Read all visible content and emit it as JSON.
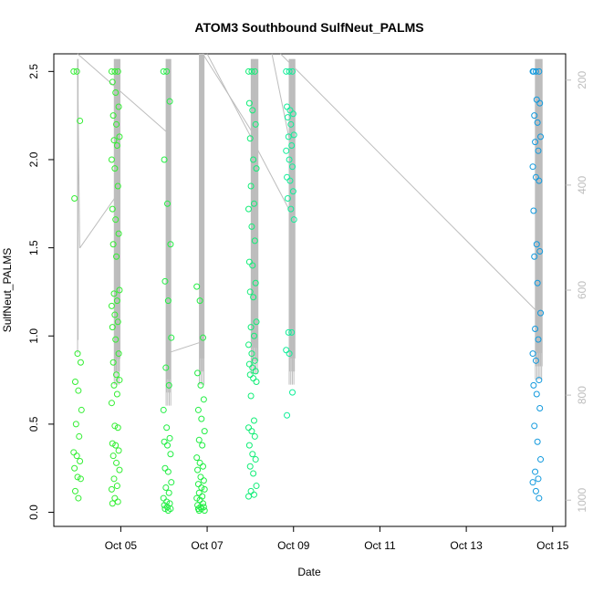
{
  "chart_data": {
    "type": "scatter",
    "title": "ATOM3 Southbound SulfNeut_PALMS",
    "xlabel": "Date",
    "ylabel": "SulfNeut_PALMS",
    "x_ticks": [
      "Oct 05",
      "Oct 07",
      "Oct 09",
      "Oct 11",
      "Oct 13",
      "Oct 15"
    ],
    "x_tick_days": [
      5,
      7,
      9,
      11,
      13,
      15
    ],
    "xlim_days": [
      3.45,
      15.3
    ],
    "y_ticks": [
      0.0,
      0.5,
      1.0,
      1.5,
      2.0,
      2.5
    ],
    "y_ticks_labels": [
      "0.0",
      "0.5",
      "1.0",
      "1.5",
      "2.0",
      "2.5"
    ],
    "ylim": [
      -0.08,
      2.6
    ],
    "y2_ticks": [
      200,
      400,
      600,
      800,
      1000
    ],
    "y2_ticks_labels": [
      "200",
      "400",
      "600",
      "800",
      "1000"
    ],
    "y2lim_top_to_bottom": [
      150,
      1050
    ],
    "secondary_axis_reversed": true,
    "marker": "open-circle",
    "color_by_time": {
      "start": "#22ff22",
      "mid": "#00ee99",
      "end": "#1199dd"
    },
    "pressure_trace_color": "#bdbdbd",
    "flights": [
      {
        "day": 4.0,
        "color": "#33ee33",
        "y": [
          2.5,
          2.5,
          2.22,
          1.78,
          0.9,
          0.85,
          0.74,
          0.69,
          0.58,
          0.5,
          0.43,
          0.34,
          0.32,
          0.29,
          0.25,
          0.2,
          0.19,
          0.12,
          0.08
        ]
      },
      {
        "day": 4.88,
        "color": "#33ee33",
        "y": [
          2.5,
          2.5,
          2.5,
          2.44,
          2.38,
          2.3,
          2.25,
          2.2,
          2.13,
          2.11,
          2.08,
          2.0,
          1.95,
          1.85,
          1.72,
          1.66,
          1.58,
          1.52,
          1.45,
          1.26,
          1.24,
          1.2,
          1.17,
          1.12,
          1.08,
          1.05,
          0.98,
          0.9,
          0.85,
          0.78,
          0.75,
          0.72,
          0.67,
          0.62,
          0.49,
          0.48,
          0.39,
          0.38,
          0.35,
          0.32,
          0.28,
          0.24,
          0.19,
          0.15,
          0.13,
          0.08,
          0.06,
          0.05
        ]
      },
      {
        "day": 6.08,
        "color": "#22ee44",
        "y": [
          2.5,
          2.5,
          2.33,
          2.0,
          1.75,
          1.52,
          1.31,
          1.2,
          0.99,
          0.82,
          0.72,
          0.58,
          0.48,
          0.42,
          0.4,
          0.38,
          0.33,
          0.25,
          0.23,
          0.17,
          0.14,
          0.11,
          0.08,
          0.06,
          0.05,
          0.04,
          0.03,
          0.02,
          0.02,
          0.01
        ]
      },
      {
        "day": 6.85,
        "color": "#22ee44",
        "y": [
          1.28,
          1.2,
          0.99,
          0.79,
          0.72,
          0.64,
          0.58,
          0.53,
          0.46,
          0.41,
          0.38,
          0.31,
          0.28,
          0.26,
          0.24,
          0.2,
          0.18,
          0.16,
          0.14,
          0.13,
          0.11,
          0.09,
          0.08,
          0.07,
          0.05,
          0.04,
          0.03,
          0.03,
          0.02,
          0.02,
          0.01,
          0.01
        ]
      },
      {
        "day": 8.05,
        "color": "#11ee77",
        "y": [
          2.5,
          2.5,
          2.5,
          2.32,
          2.28,
          2.2,
          2.12,
          2.0,
          1.95,
          1.85,
          1.75,
          1.72,
          1.62,
          1.54,
          1.42,
          1.4,
          1.3,
          1.25,
          1.22,
          1.08,
          1.05,
          1.0,
          0.95,
          0.9,
          0.86,
          0.84,
          0.82,
          0.8,
          0.78,
          0.76,
          0.74,
          0.66,
          0.52,
          0.48,
          0.46,
          0.43,
          0.38,
          0.33,
          0.3,
          0.26,
          0.22,
          0.15,
          0.12,
          0.1,
          0.09
        ]
      },
      {
        "day": 8.92,
        "color": "#11ee99",
        "y": [
          2.5,
          2.5,
          2.5,
          2.3,
          2.28,
          2.26,
          2.24,
          2.2,
          2.14,
          2.13,
          2.08,
          2.05,
          2.0,
          1.96,
          1.9,
          1.88,
          1.82,
          1.78,
          1.72,
          1.66,
          1.02,
          1.02,
          0.92,
          0.9,
          0.68,
          0.55
        ]
      },
      {
        "day": 14.63,
        "color": "#1199dd",
        "y": [
          2.5,
          2.5,
          2.5,
          2.5,
          2.34,
          2.32,
          2.25,
          2.21,
          2.13,
          2.1,
          2.05,
          1.96,
          1.9,
          1.88,
          1.71,
          1.52,
          1.48,
          1.45,
          1.3,
          1.13,
          1.04,
          0.98,
          0.9,
          0.86,
          0.75,
          0.72,
          0.67,
          0.59,
          0.49,
          0.4,
          0.3,
          0.23,
          0.19,
          0.17,
          0.12,
          0.08
        ]
      }
    ]
  }
}
